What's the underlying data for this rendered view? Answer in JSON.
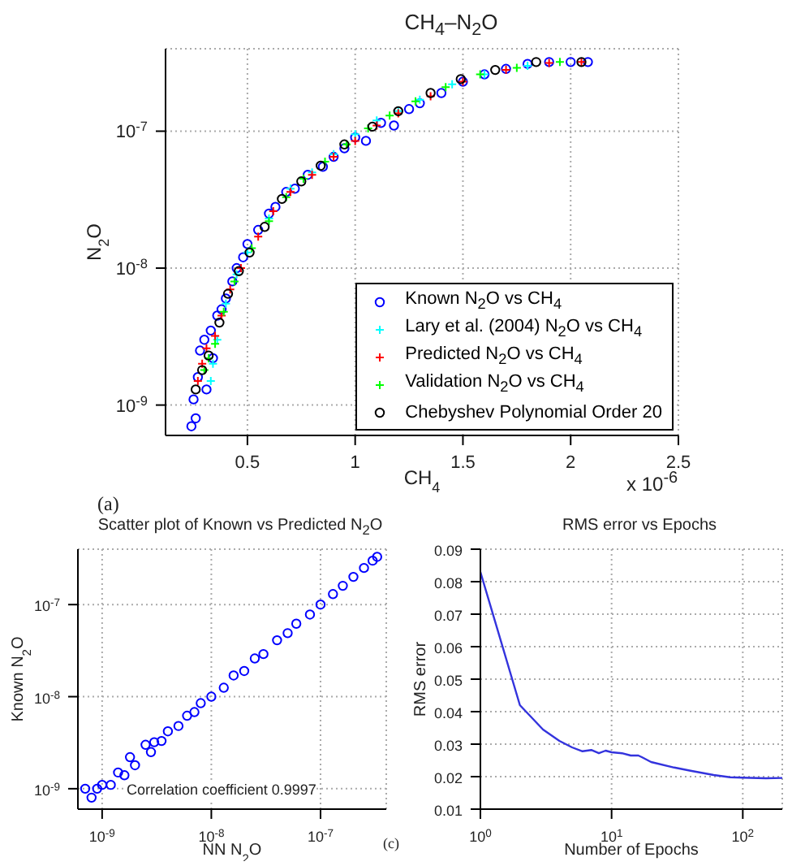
{
  "chart_data": [
    {
      "type": "scatter",
      "title": "CH$_{4}$–N$_{2}$O",
      "xlabel": "CH$_{4}$",
      "ylabel": "N$_{2}$O",
      "log": "y",
      "grid": true,
      "legend": "bottom right",
      "xlim": [
        0.12,
        2.5
      ],
      "xticks": [
        0.5,
        1,
        1.5,
        2,
        2.5
      ],
      "ylim": [
        6e-10,
        4e-07
      ],
      "yticks": [
        {
          "value": 1e-09,
          "label": "10$^{-9}$"
        },
        {
          "value": 1e-08,
          "label": "10$^{-8}$"
        },
        {
          "value": 1e-07,
          "label": "10$^{-7}$"
        }
      ],
      "annotations": [
        "(a)",
        "x 10$^{-6}$"
      ],
      "series": [
        {
          "name": "Known N$_{2}$O vs CH$_{4}$",
          "color": "#0000ff",
          "marker": "circle",
          "x": [
            0.24,
            0.25,
            0.26,
            0.27,
            0.28,
            0.3,
            0.31,
            0.33,
            0.34,
            0.36,
            0.38,
            0.4,
            0.43,
            0.45,
            0.48,
            0.5,
            0.55,
            0.6,
            0.63,
            0.68,
            0.72,
            0.78,
            0.85,
            0.9,
            0.95,
            1.0,
            1.05,
            1.12,
            1.18,
            1.25,
            1.3,
            1.4,
            1.5,
            1.6,
            1.7,
            1.8,
            1.9,
            2.0,
            2.08
          ],
          "values": [
            7e-10,
            1.1e-09,
            8e-10,
            1.6e-09,
            2.5e-09,
            3e-09,
            1.3e-09,
            3.5e-09,
            2.2e-09,
            4.5e-09,
            5e-09,
            6e-09,
            8e-09,
            1e-08,
            1.2e-08,
            1.5e-08,
            1.9e-08,
            2.5e-08,
            2.8e-08,
            3.6e-08,
            3.8e-08,
            4.8e-08,
            5.5e-08,
            6.5e-08,
            7.5e-08,
            9e-08,
            8.5e-08,
            1.15e-07,
            1.1e-07,
            1.45e-07,
            1.6e-07,
            1.9e-07,
            2.3e-07,
            2.6e-07,
            2.85e-07,
            3.1e-07,
            3.2e-07,
            3.2e-07,
            3.2e-07
          ]
        },
        {
          "name": "Lary et al. (2004) N$_{2}$O vs CH$_{4}$",
          "color": "#00ffff",
          "marker": "cross",
          "x": [
            0.33,
            0.34,
            0.36,
            0.4,
            0.45,
            0.5,
            0.6,
            0.7,
            0.8,
            0.9,
            1.0,
            1.1,
            1.2,
            1.3,
            1.45,
            1.6,
            1.8
          ],
          "values": [
            1.5e-09,
            2e-09,
            3e-09,
            5.5e-09,
            9e-09,
            1.3e-08,
            2.3e-08,
            3.8e-08,
            5e-08,
            6.8e-08,
            9.5e-08,
            1.2e-07,
            1.4e-07,
            1.7e-07,
            2.2e-07,
            2.6e-07,
            3e-07
          ]
        },
        {
          "name": "Predicted N$_{2}$O vs CH$_{4}$",
          "color": "#ff0000",
          "marker": "cross",
          "x": [
            0.27,
            0.29,
            0.31,
            0.35,
            0.38,
            0.42,
            0.47,
            0.55,
            0.62,
            0.7,
            0.8,
            0.9,
            1.0,
            1.1,
            1.2,
            1.35,
            1.5,
            1.7,
            1.9,
            2.05
          ],
          "values": [
            1.5e-09,
            2e-09,
            2.6e-09,
            3.2e-09,
            4.5e-09,
            7e-09,
            1e-08,
            1.7e-08,
            2.6e-08,
            3.6e-08,
            4.8e-08,
            6.5e-08,
            8.5e-08,
            1.1e-07,
            1.35e-07,
            1.8e-07,
            2.3e-07,
            2.8e-07,
            3.15e-07,
            3.2e-07
          ]
        },
        {
          "name": "Validation N$_{2}$O vs CH$_{4}$",
          "color": "#00ff00",
          "marker": "cross",
          "x": [
            0.3,
            0.32,
            0.35,
            0.39,
            0.44,
            0.52,
            0.6,
            0.68,
            0.76,
            0.86,
            0.96,
            1.06,
            1.16,
            1.28,
            1.42,
            1.58,
            1.75,
            1.95
          ],
          "values": [
            1.8e-09,
            2.2e-09,
            2.8e-09,
            4.8e-09,
            8e-09,
            1.4e-08,
            2.2e-08,
            3.3e-08,
            4.5e-08,
            6e-08,
            8e-08,
            1.05e-07,
            1.3e-07,
            1.65e-07,
            2.1e-07,
            2.6e-07,
            2.9e-07,
            3.2e-07
          ]
        },
        {
          "name": "Chebyshev Polynomial Order 20",
          "color": "#000000",
          "marker": "circle",
          "x": [
            0.26,
            0.29,
            0.32,
            0.37,
            0.41,
            0.46,
            0.51,
            0.58,
            0.66,
            0.75,
            0.84,
            0.95,
            1.08,
            1.2,
            1.35,
            1.49,
            1.65,
            1.84,
            2.05
          ],
          "values": [
            1.3e-09,
            1.8e-09,
            2.3e-09,
            4e-09,
            6.5e-09,
            9.5e-09,
            1.3e-08,
            2e-08,
            3.2e-08,
            4.3e-08,
            5.6e-08,
            8e-08,
            1.08e-07,
            1.4e-07,
            1.9e-07,
            2.4e-07,
            2.8e-07,
            3.2e-07,
            3.2e-07
          ]
        }
      ]
    },
    {
      "type": "scatter",
      "title": "Scatter plot of Known vs Predicted N$_{2}$O",
      "xlabel": "NN N$_{2}$O",
      "ylabel": "Known N$_{2}$O",
      "log": "xy",
      "grid": true,
      "marker": "circle",
      "xlim": [
        6e-10,
        4e-07
      ],
      "xticks": [
        {
          "value": 1e-09,
          "label": "10$^{-9}$"
        },
        {
          "value": 1e-08,
          "label": "10$^{-8}$"
        },
        {
          "value": 1e-07,
          "label": "10$^{-7}$"
        }
      ],
      "ylim": [
        6e-10,
        4e-07
      ],
      "yticks": [
        {
          "value": 1e-09,
          "label": "10$^{-9}$"
        },
        {
          "value": 1e-08,
          "label": "10$^{-8}$"
        },
        {
          "value": 1e-07,
          "label": "10$^{-7}$"
        }
      ],
      "annotations": [
        "Correlation coefficient 0.9997"
      ],
      "series": [
        {
          "color": "#0000ff",
          "x": [
            7e-10,
            8e-10,
            9e-10,
            1e-09,
            1.2e-09,
            1.4e-09,
            1.6e-09,
            1.8e-09,
            2e-09,
            2.5e-09,
            2.8e-09,
            3e-09,
            3.5e-09,
            4e-09,
            5e-09,
            6e-09,
            7e-09,
            8e-09,
            1e-08,
            1.3e-08,
            1.6e-08,
            2e-08,
            2.5e-08,
            3e-08,
            4e-08,
            5e-08,
            6e-08,
            8e-08,
            1e-07,
            1.3e-07,
            1.6e-07,
            2e-07,
            2.5e-07,
            3e-07,
            3.3e-07
          ],
          "values": [
            1e-09,
            8e-10,
            1e-09,
            1.1e-09,
            1.1e-09,
            1.5e-09,
            1.4e-09,
            2.2e-09,
            1.8e-09,
            3e-09,
            2.5e-09,
            3.2e-09,
            3.3e-09,
            4.2e-09,
            4.8e-09,
            6.2e-09,
            6.8e-09,
            8.5e-09,
            1e-08,
            1.25e-08,
            1.7e-08,
            1.9e-08,
            2.6e-08,
            2.9e-08,
            4.1e-08,
            4.9e-08,
            6.2e-08,
            7.8e-08,
            1e-07,
            1.3e-07,
            1.6e-07,
            2e-07,
            2.5e-07,
            3e-07,
            3.3e-07
          ]
        }
      ]
    },
    {
      "type": "line",
      "title": "RMS error vs Epochs",
      "xlabel": "Number of Epochs",
      "ylabel": "RMS error",
      "log": "x",
      "grid": true,
      "marker": "none",
      "xlim": [
        1,
        200
      ],
      "xticks": [
        {
          "value": 1,
          "label": "10$^{0}$"
        },
        {
          "value": 10,
          "label": "10$^{1}$"
        },
        {
          "value": 100,
          "label": "10$^{2}$"
        }
      ],
      "ylim": [
        0.01,
        0.09
      ],
      "yticks": [
        0.01,
        0.02,
        0.03,
        0.04,
        0.05,
        0.06,
        0.07,
        0.08,
        0.09
      ],
      "annotations": [
        "(c)"
      ],
      "series": [
        {
          "color": "#3333dd",
          "x": [
            1,
            2,
            3,
            4,
            5,
            6,
            7,
            8,
            9,
            10,
            12,
            14,
            16,
            17,
            20,
            30,
            40,
            60,
            80,
            100,
            150,
            200
          ],
          "values": [
            0.083,
            0.042,
            0.0345,
            0.031,
            0.029,
            0.0278,
            0.0282,
            0.0272,
            0.028,
            0.0275,
            0.0272,
            0.0265,
            0.0265,
            0.026,
            0.0245,
            0.0228,
            0.0218,
            0.0205,
            0.0198,
            0.0197,
            0.0195,
            0.0196
          ]
        }
      ]
    }
  ]
}
